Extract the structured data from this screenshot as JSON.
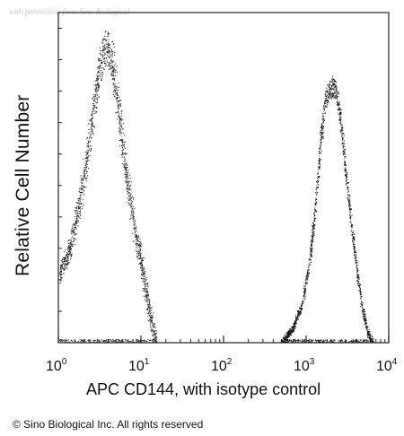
{
  "watermark": "with permission from Sino Biological",
  "footer": {
    "copyright": "© Sino Biological Inc. All rights reserved"
  },
  "chart_data": {
    "type": "area",
    "title": "",
    "xlabel": "APC CD144, with isotype control",
    "ylabel": "Relative Cell Number",
    "xscale": "log",
    "xlim": [
      1,
      10000
    ],
    "ylim": [
      0,
      1
    ],
    "grid": false,
    "legend": "none",
    "x_ticks": [
      {
        "value": 1,
        "base": "10",
        "exp": "0"
      },
      {
        "value": 10,
        "base": "10",
        "exp": "1"
      },
      {
        "value": 100,
        "base": "10",
        "exp": "2"
      },
      {
        "value": 1000,
        "base": "10",
        "exp": "3"
      },
      {
        "value": 10000,
        "base": "10",
        "exp": "4"
      }
    ],
    "series": [
      {
        "color": "#2b2b2b",
        "x": [
          1.0,
          1.3,
          1.6,
          1.9,
          2.2,
          2.5,
          2.8,
          3.1,
          3.5,
          3.9,
          4.4,
          5.0,
          5.7,
          6.5,
          7.5,
          8.5,
          10,
          11,
          12.5,
          14,
          15.5
        ],
        "y": [
          0.2,
          0.27,
          0.36,
          0.46,
          0.56,
          0.66,
          0.75,
          0.82,
          0.88,
          0.9,
          0.86,
          0.76,
          0.64,
          0.52,
          0.42,
          0.33,
          0.25,
          0.18,
          0.1,
          0.04,
          0.0
        ]
      },
      {
        "color": "#111111",
        "x": [
          500,
          700,
          900,
          1100,
          1300,
          1500,
          1700,
          1900,
          2100,
          2300,
          2600,
          3000,
          3500,
          4100,
          4800,
          5600,
          6500
        ],
        "y": [
          0.0,
          0.05,
          0.12,
          0.25,
          0.42,
          0.62,
          0.74,
          0.76,
          0.78,
          0.76,
          0.68,
          0.52,
          0.36,
          0.22,
          0.1,
          0.03,
          0.0
        ]
      }
    ]
  }
}
